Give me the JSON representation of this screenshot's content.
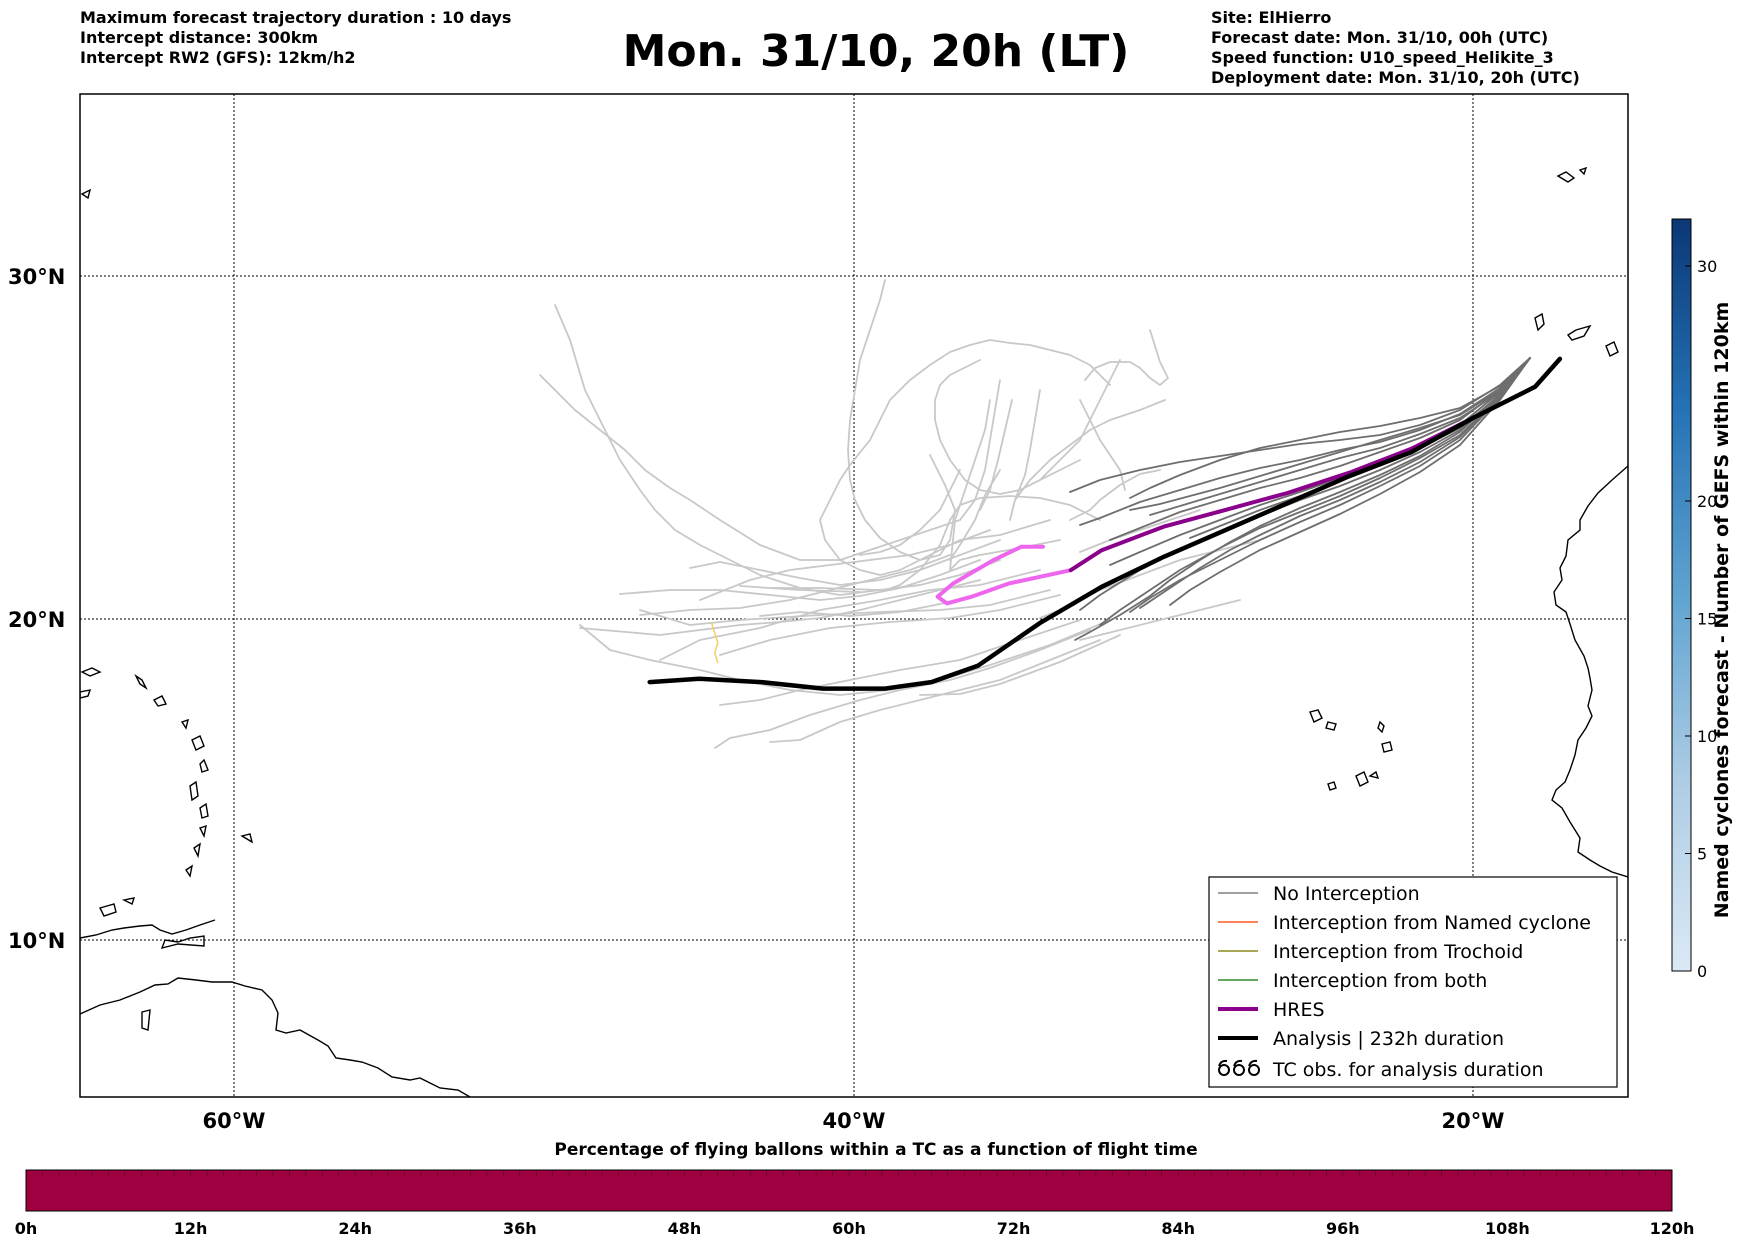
{
  "header": {
    "left": [
      "Maximum forecast trajectory duration : 10 days",
      "Intercept distance: 300km",
      "Intercept RW2 (GFS):  12km/h2"
    ],
    "right": [
      "Site: ElHierro",
      "Forecast date: Mon. 31/10, 00h (UTC)",
      "Speed function: U10_speed_Helikite_3",
      "Deployment date: Mon. 31/10, 20h (UTC)"
    ]
  },
  "title": "Mon. 31/10, 20h (LT)",
  "map": {
    "lat_labels": [
      "30°N",
      "20°N",
      "10°N"
    ],
    "lon_labels": [
      "60°W",
      "40°W",
      "20°W"
    ],
    "grid": "dotted",
    "extent": {
      "lon_min": -65,
      "lon_max": -15,
      "lat_min": 5,
      "lat_max": 35
    }
  },
  "legend": {
    "placement": "bottom-right",
    "items": [
      {
        "label": "No Interception",
        "color": "#808080",
        "style": "thin"
      },
      {
        "label": "Interception from Named cyclone",
        "color": "#ff5a1e",
        "style": "thin"
      },
      {
        "label": "Interception from Trochoid",
        "color": "#8b8b1e",
        "style": "thin"
      },
      {
        "label": "Interception from both",
        "color": "#2e8b2e",
        "style": "thin"
      },
      {
        "label": "HRES",
        "color": "#8b008b",
        "style": "thick"
      },
      {
        "label": "Analysis | 232h duration",
        "color": "#000000",
        "style": "thick"
      },
      {
        "label": "TC obs. for analysis duration",
        "icon": "tc-symbol-icon"
      }
    ]
  },
  "colorbar_right": {
    "label": "Named cyclones forecast - Number of GEFS within 120km",
    "ticks": [
      "0",
      "5",
      "10",
      "15",
      "20",
      "30"
    ],
    "tick_values": [
      0,
      5,
      10,
      15,
      20,
      30
    ],
    "range": [
      0,
      32
    ]
  },
  "bottom_bar": {
    "title": "Percentage of flying ballons within a TC as a function of flight time",
    "ticks": [
      "0h",
      "12h",
      "24h",
      "36h",
      "48h",
      "60h",
      "72h",
      "84h",
      "96h",
      "108h",
      "120h"
    ],
    "fill_color": "#9e0040"
  },
  "chart_data": {
    "type": "line",
    "xlabel": "",
    "ylabel": "",
    "series": [
      {
        "name": "Analysis | 232h duration",
        "color": "#000000",
        "points": [
          [
            -17.2,
            27.7
          ],
          [
            -18,
            26.9
          ],
          [
            -20,
            26.0
          ],
          [
            -22,
            25.0
          ],
          [
            -24,
            24.3
          ],
          [
            -26,
            23.5
          ],
          [
            -28,
            22.7
          ],
          [
            -30,
            21.9
          ],
          [
            -32,
            21.0
          ],
          [
            -34,
            19.9
          ],
          [
            -36,
            18.6
          ],
          [
            -37.5,
            18.1
          ],
          [
            -39,
            17.9
          ],
          [
            -41,
            17.9
          ],
          [
            -43,
            18.1
          ],
          [
            -45,
            18.2
          ],
          [
            -46.6,
            18.1
          ]
        ]
      },
      {
        "name": "HRES",
        "color": "#8b008b",
        "points": [
          [
            -17.2,
            27.7
          ],
          [
            -18,
            26.9
          ],
          [
            -20,
            26.0
          ],
          [
            -22,
            25.1
          ],
          [
            -24,
            24.4
          ],
          [
            -26,
            23.8
          ],
          [
            -28,
            23.3
          ],
          [
            -30,
            22.8
          ],
          [
            -32,
            22.1
          ],
          [
            -33,
            21.5
          ]
        ]
      },
      {
        "color": "#ee66ee",
        "points": [
          [
            -33,
            21.5
          ],
          [
            -35,
            21.1
          ],
          [
            -36.2,
            20.7
          ],
          [
            -37,
            20.5
          ],
          [
            -37.3,
            20.7
          ],
          [
            -36.8,
            21.1
          ],
          [
            -35.5,
            21.8
          ],
          [
            -34.6,
            22.2
          ],
          [
            -33.9,
            22.2
          ]
        ]
      },
      {
        "color": "#f0d060",
        "points": [
          [
            -44.6,
            19.9
          ],
          [
            -44.5,
            19.6
          ],
          [
            -44.4,
            19.3
          ],
          [
            -44.5,
            19.0
          ],
          [
            -44.4,
            18.7
          ]
        ]
      }
    ]
  }
}
